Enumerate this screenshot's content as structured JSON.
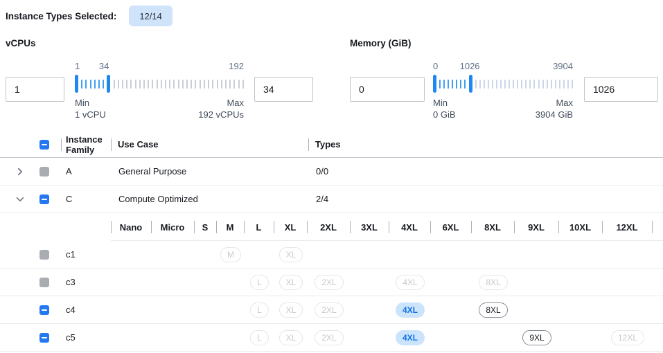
{
  "header": {
    "label": "Instance Types Selected:",
    "badge": "12/14"
  },
  "filters": [
    {
      "title": "vCPUs",
      "min_input": "1",
      "max_input": "34",
      "slider": {
        "min": 1,
        "max": 192,
        "low": 1,
        "high": 34,
        "low_label": "1",
        "high_label": "34",
        "max_label": "192",
        "min_caption": "Min",
        "min_value": "1 vCPU",
        "max_caption": "Max",
        "max_value": "192 vCPUs",
        "tick_color_out": "#c9ced6"
      }
    },
    {
      "title": "Memory (GiB)",
      "min_input": "0",
      "max_input": "1026",
      "slider": {
        "min": 0,
        "max": 3904,
        "low": 0,
        "high": 1026,
        "low_label": "0",
        "high_label": "1026",
        "max_label": "3904",
        "min_caption": "Min",
        "min_value": "0 GiB",
        "max_caption": "Max",
        "max_value": "3904 GiB",
        "tick_color_out": "#ccd6e9"
      }
    }
  ],
  "table": {
    "header_checkbox": "indeterminate",
    "columns": {
      "family": "Instance Family",
      "use_case": "Use Case",
      "types": "Types"
    },
    "family_rows": [
      {
        "family": "A",
        "use_case": "General Purpose",
        "types": "0/0",
        "expanded": false,
        "checkbox": "disabled"
      },
      {
        "family": "C",
        "use_case": "Compute Optimized",
        "types": "2/4",
        "expanded": true,
        "checkbox": "indeterminate"
      }
    ],
    "sizes": [
      "Nano",
      "Micro",
      "S",
      "M",
      "L",
      "XL",
      "2XL",
      "3XL",
      "4XL",
      "6XL",
      "8XL",
      "9XL",
      "10XL",
      "12XL"
    ],
    "instance_rows": [
      {
        "name": "c1",
        "checkbox": "disabled",
        "pills": [
          {
            "size": "M",
            "state": "disabled"
          },
          {
            "size": "XL",
            "state": "disabled"
          }
        ]
      },
      {
        "name": "c3",
        "checkbox": "disabled",
        "pills": [
          {
            "size": "L",
            "state": "disabled"
          },
          {
            "size": "XL",
            "state": "disabled"
          },
          {
            "size": "2XL",
            "state": "disabled"
          },
          {
            "size": "4XL",
            "state": "disabled"
          },
          {
            "size": "8XL",
            "state": "disabled"
          }
        ]
      },
      {
        "name": "c4",
        "checkbox": "indeterminate",
        "pills": [
          {
            "size": "L",
            "state": "disabled"
          },
          {
            "size": "XL",
            "state": "disabled"
          },
          {
            "size": "2XL",
            "state": "disabled"
          },
          {
            "size": "4XL",
            "state": "selected"
          },
          {
            "size": "8XL",
            "state": "enabled"
          }
        ]
      },
      {
        "name": "c5",
        "checkbox": "indeterminate",
        "pills": [
          {
            "size": "L",
            "state": "disabled"
          },
          {
            "size": "XL",
            "state": "disabled"
          },
          {
            "size": "2XL",
            "state": "disabled"
          },
          {
            "size": "4XL",
            "state": "selected"
          },
          {
            "size": "9XL",
            "state": "enabled"
          },
          {
            "size": "12XL",
            "state": "disabled"
          }
        ]
      }
    ]
  },
  "colors": {
    "accent_blue": "#2479f2",
    "badge_bg": "#cfe4fb",
    "selected_pill_bg": "#cce4fb",
    "selected_pill_text": "#1173e8",
    "slider_handle": "#1e87f0",
    "slider_tick_active": "#3f9ef2"
  }
}
